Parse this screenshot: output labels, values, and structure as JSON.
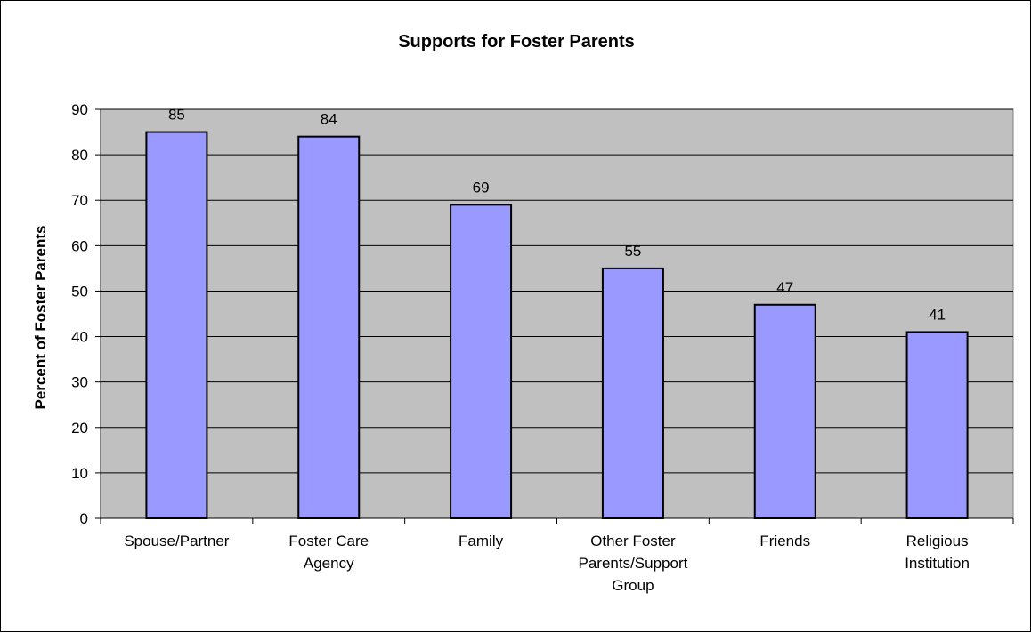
{
  "chart_data": {
    "type": "bar",
    "title": "Supports for Foster Parents",
    "xlabel": "",
    "ylabel": "Percent of Foster Parents",
    "ylim": [
      0,
      90
    ],
    "yticks": [
      0,
      10,
      20,
      30,
      40,
      50,
      60,
      70,
      80,
      90
    ],
    "categories": [
      [
        "Spouse/Partner"
      ],
      [
        "Foster Care",
        "Agency"
      ],
      [
        "Family"
      ],
      [
        "Other Foster",
        "Parents/Support",
        "Group"
      ],
      [
        "Friends"
      ],
      [
        "Religious",
        "Institution"
      ]
    ],
    "values": [
      85,
      84,
      69,
      55,
      47,
      41
    ],
    "data_labels": [
      "85",
      "84",
      "69",
      "55",
      "47",
      "41"
    ],
    "grid": true,
    "legend": "none",
    "colors": {
      "bar_fill": "#9999ff",
      "bar_stroke": "#000000",
      "plot_background": "#c0c0c0",
      "gridline": "#000000"
    }
  }
}
